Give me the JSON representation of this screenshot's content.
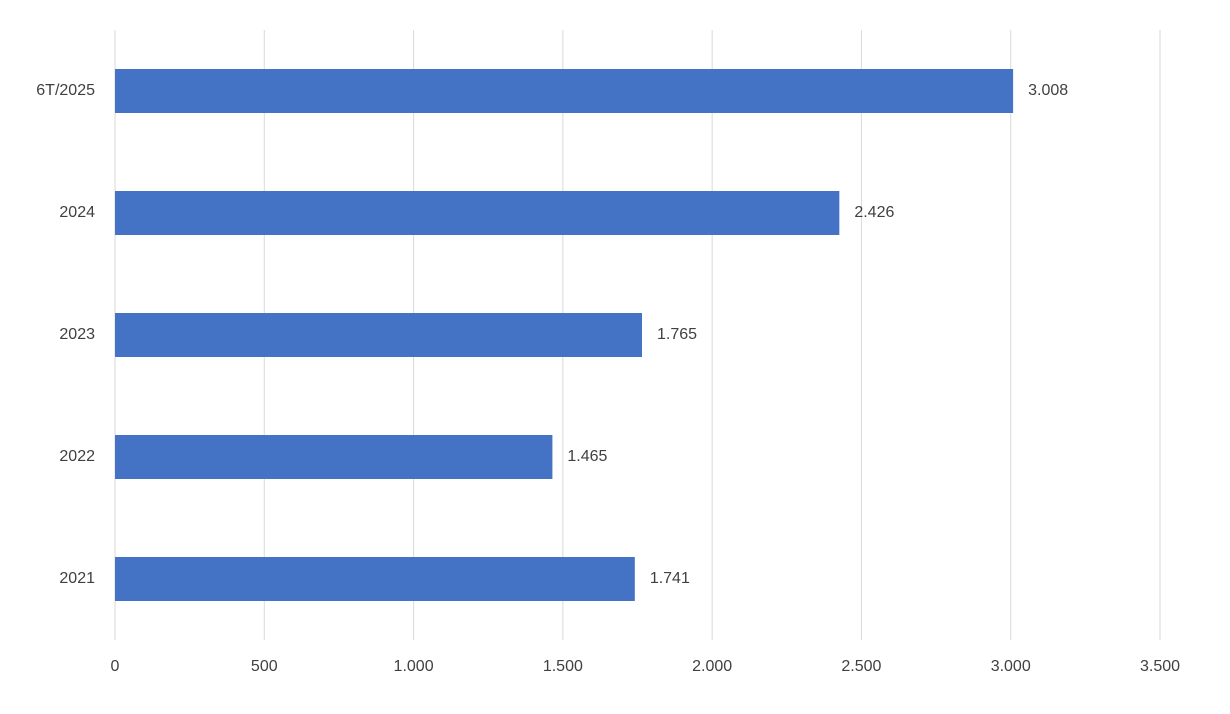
{
  "chart_data": {
    "type": "bar",
    "orientation": "horizontal",
    "categories": [
      "2021",
      "2022",
      "2023",
      "2024",
      "6T/2025"
    ],
    "values": [
      1741,
      1465,
      1765,
      2426,
      3008
    ],
    "value_labels": [
      "1.741",
      "1.465",
      "1.765",
      "2.426",
      "3.008"
    ],
    "color": "#4472c4",
    "xlim": [
      0,
      3500
    ],
    "xticks": [
      0,
      500,
      {
        "value": 1000,
        "label": "1.000"
      },
      {
        "value": 1500,
        "label": "1.500"
      },
      {
        "value": 2000,
        "label": "2.000"
      },
      {
        "value": 2500,
        "label": "2.500"
      },
      {
        "value": 3000,
        "label": "3.000"
      },
      {
        "value": 3500,
        "label": "3.500"
      }
    ],
    "grid": true
  }
}
